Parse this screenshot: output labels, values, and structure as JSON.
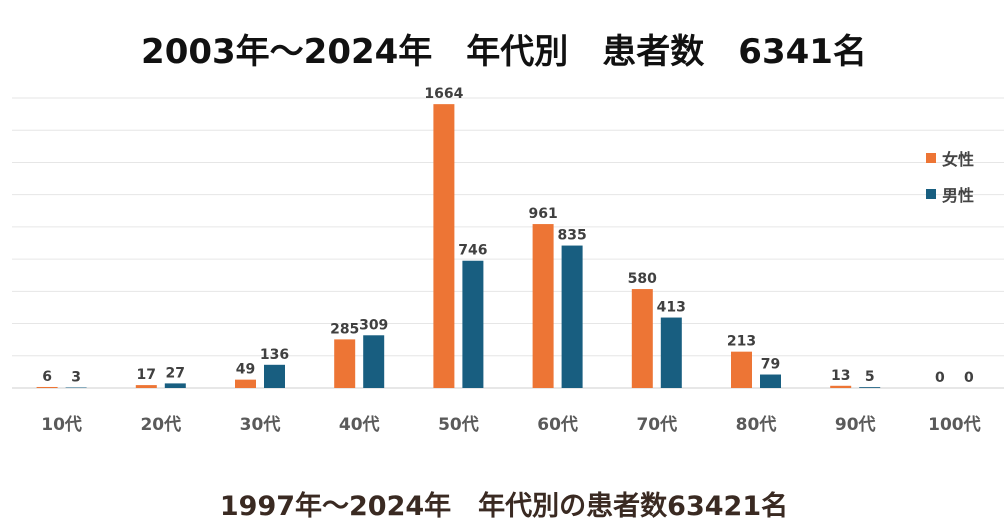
{
  "title": "2003年～2024年　年代別　患者数　6341名",
  "caption": "1997年～2024年　年代別の患者数63421名",
  "chart_data": {
    "type": "bar",
    "categories": [
      "10代",
      "20代",
      "30代",
      "40代",
      "50代",
      "60代",
      "70代",
      "80代",
      "90代",
      "100代"
    ],
    "series": [
      {
        "name": "女性",
        "color": "#ED7535",
        "values": [
          6,
          17,
          49,
          285,
          1664,
          961,
          580,
          213,
          13,
          0
        ]
      },
      {
        "name": "男性",
        "color": "#185E80",
        "values": [
          3,
          27,
          136,
          309,
          746,
          835,
          413,
          79,
          5,
          0
        ]
      }
    ],
    "ylim": [
      0,
      1700
    ],
    "grid": true,
    "legend": "top-right"
  }
}
